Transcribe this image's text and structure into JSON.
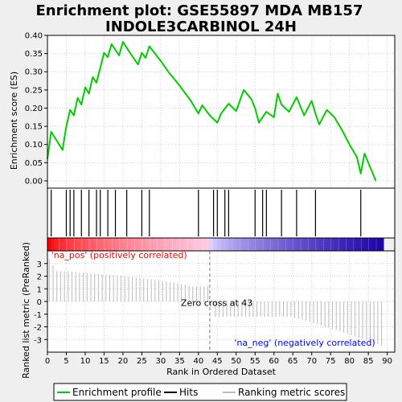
{
  "title_line1": "Enrichment plot: GSE55897 MDA MB157",
  "title_line2": "INDOLE3CARBINOL 24H",
  "chart_data": {
    "type": "line",
    "top": {
      "ylabel": "Enrichment score (ES)",
      "ylim": [
        -0.02,
        0.4
      ],
      "yticks": [
        "0.00",
        "0.05",
        "0.10",
        "0.15",
        "0.20",
        "0.25",
        "0.30",
        "0.35",
        "0.40"
      ],
      "ytick_values": [
        0.0,
        0.05,
        0.1,
        0.15,
        0.2,
        0.25,
        0.3,
        0.35,
        0.4
      ],
      "series": [
        {
          "color": "#00cc00",
          "x": [
            0,
            1,
            4,
            5,
            6,
            7,
            8,
            9,
            10,
            11,
            12,
            13,
            14,
            15,
            16,
            17,
            19,
            20,
            22,
            24,
            25,
            26,
            27,
            30,
            32,
            35,
            38,
            40,
            41,
            43,
            45,
            46,
            48,
            50,
            52,
            54,
            55,
            56,
            58,
            60,
            61,
            62,
            64,
            66,
            68,
            70,
            71,
            72,
            74,
            76,
            78,
            80,
            82,
            83,
            84,
            87
          ],
          "y": [
            0.06,
            0.135,
            0.085,
            0.15,
            0.195,
            0.18,
            0.228,
            0.21,
            0.257,
            0.24,
            0.285,
            0.27,
            0.31,
            0.352,
            0.34,
            0.376,
            0.345,
            0.382,
            0.35,
            0.32,
            0.352,
            0.338,
            0.37,
            0.33,
            0.3,
            0.262,
            0.22,
            0.185,
            0.208,
            0.18,
            0.16,
            0.185,
            0.212,
            0.192,
            0.25,
            0.225,
            0.2,
            0.16,
            0.19,
            0.175,
            0.24,
            0.21,
            0.19,
            0.23,
            0.18,
            0.22,
            0.185,
            0.155,
            0.195,
            0.175,
            0.14,
            0.1,
            0.065,
            0.02,
            0.075,
            0.0
          ]
        }
      ]
    },
    "hits": {
      "positions": [
        1,
        5,
        6,
        7,
        9,
        11,
        13,
        14,
        16,
        18,
        21,
        25,
        27,
        40,
        44,
        45,
        47,
        48,
        55,
        57,
        58,
        62,
        66,
        71,
        83
      ]
    },
    "bottom": {
      "xlabel": "Rank in Ordered Dataset",
      "ylabel": "Ranked list metric (PreRanked)",
      "xlim": [
        0,
        92
      ],
      "ylim": [
        -4,
        4
      ],
      "xticks": [
        "0",
        "5",
        "10",
        "15",
        "20",
        "25",
        "30",
        "35",
        "40",
        "45",
        "50",
        "55",
        "60",
        "65",
        "70",
        "75",
        "80",
        "85",
        "90"
      ],
      "xtick_values": [
        0,
        5,
        10,
        15,
        20,
        25,
        30,
        35,
        40,
        45,
        50,
        55,
        60,
        65,
        70,
        75,
        80,
        85,
        90
      ],
      "yticks": [
        "-3",
        "-2",
        "-1",
        "0",
        "1",
        "2",
        "3"
      ],
      "ytick_values": [
        -3,
        -2,
        -1,
        0,
        1,
        2,
        3
      ],
      "metric_first": 3.3,
      "metric_zero_cross": 43,
      "metric_last": -3.6,
      "n_items": 89,
      "zero_cross_label": "Zero cross at 43",
      "pos_label": "'na_pos' (positively correlated)",
      "neg_label": "'na_neg' (negatively correlated)",
      "pos_color": "#ff0000",
      "neg_color": "#0000ff"
    },
    "legend": {
      "placement": "bottom",
      "entries": [
        {
          "label": "Enrichment profile",
          "color": "#00cc00"
        },
        {
          "label": "Hits",
          "color": "#000000"
        },
        {
          "label": "Ranking metric scores",
          "color": "#bbbbbb"
        }
      ]
    }
  }
}
